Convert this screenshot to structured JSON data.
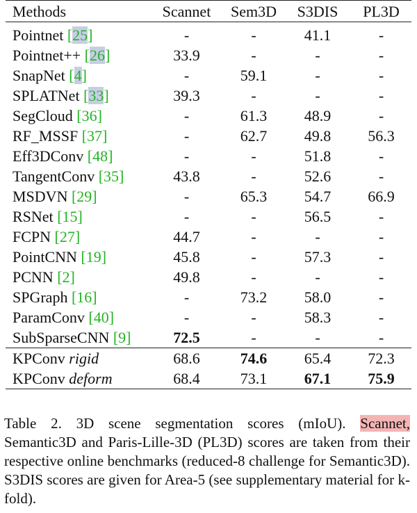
{
  "table": {
    "headers": [
      "Methods",
      "Scannet",
      "Sem3D",
      "S3DIS",
      "PL3D"
    ],
    "rows": [
      {
        "method": "Pointnet",
        "ref": "25",
        "highlight_ref": true,
        "values": [
          "-",
          "-",
          "41.1",
          "-"
        ]
      },
      {
        "method": "Pointnet++",
        "ref": "26",
        "highlight_ref": true,
        "values": [
          "33.9",
          "-",
          "-",
          "-"
        ]
      },
      {
        "method": "SnapNet",
        "ref": "4",
        "highlight_ref": true,
        "values": [
          "-",
          "59.1",
          "-",
          "-"
        ]
      },
      {
        "method": "SPLATNet",
        "ref": "33",
        "highlight_ref": true,
        "values": [
          "39.3",
          "-",
          "-",
          "-"
        ]
      },
      {
        "method": "SegCloud",
        "ref": "36",
        "highlight_ref": false,
        "values": [
          "-",
          "61.3",
          "48.9",
          "-"
        ]
      },
      {
        "method": "RF_MSSF",
        "ref": "37",
        "highlight_ref": false,
        "values": [
          "-",
          "62.7",
          "49.8",
          "56.3"
        ]
      },
      {
        "method": "Eff3DConv",
        "ref": "48",
        "highlight_ref": false,
        "values": [
          "-",
          "-",
          "51.8",
          "-"
        ]
      },
      {
        "method": "TangentConv",
        "ref": "35",
        "highlight_ref": false,
        "values": [
          "43.8",
          "-",
          "52.6",
          "-"
        ]
      },
      {
        "method": "MSDVN",
        "ref": "29",
        "highlight_ref": false,
        "values": [
          "-",
          "65.3",
          "54.7",
          "66.9"
        ]
      },
      {
        "method": "RSNet",
        "ref": "15",
        "highlight_ref": false,
        "values": [
          "-",
          "-",
          "56.5",
          "-"
        ]
      },
      {
        "method": "FCPN",
        "ref": "27",
        "highlight_ref": false,
        "values": [
          "44.7",
          "-",
          "-",
          "-"
        ]
      },
      {
        "method": "PointCNN",
        "ref": "19",
        "highlight_ref": false,
        "values": [
          "45.8",
          "-",
          "57.3",
          "-"
        ]
      },
      {
        "method": "PCNN",
        "ref": "2",
        "highlight_ref": false,
        "values": [
          "49.8",
          "-",
          "-",
          "-"
        ]
      },
      {
        "method": "SPGraph",
        "ref": "16",
        "highlight_ref": false,
        "values": [
          "-",
          "73.2",
          "58.0",
          "-"
        ]
      },
      {
        "method": "ParamConv",
        "ref": "40",
        "highlight_ref": false,
        "values": [
          "-",
          "-",
          "58.3",
          "-"
        ]
      },
      {
        "method": "SubSparseCNN",
        "ref": "9",
        "highlight_ref": false,
        "values": [
          "72.5",
          "-",
          "-",
          "-"
        ]
      }
    ],
    "kpconv_rows": [
      {
        "name": "KPConv",
        "variant": "rigid",
        "values": [
          "68.6",
          "74.6",
          "65.4",
          "72.3"
        ]
      },
      {
        "name": "KPConv",
        "variant": "deform",
        "values": [
          "68.4",
          "73.1",
          "67.1",
          "75.9"
        ]
      }
    ]
  },
  "caption": {
    "part1": "Table 2. 3D scene segmentation scores (mIoU). ",
    "highlighted": "Scannet,",
    "part2": " Semantic3D and Paris-Lille-3D (PL3D) scores are taken from their respective online benchmarks (reduced-8 challenge for Semantic3D). S3DIS scores are given for Area-5 (see supplementary material for k-fold)."
  },
  "colors": {
    "ref_green": "#22b422",
    "ref_highlight": "#c8cde6",
    "caption_highlight": "#f4b4b4"
  }
}
